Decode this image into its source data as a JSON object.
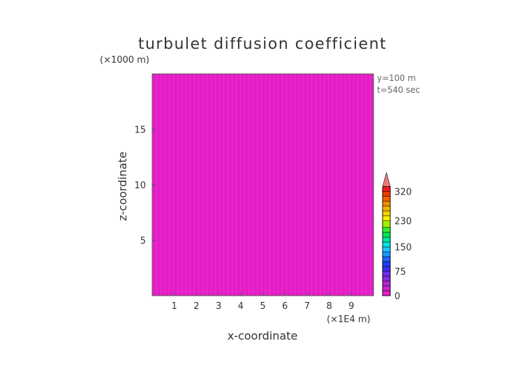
{
  "chart_data": {
    "type": "heatmap",
    "title": "turbulet diffusion coefficient",
    "xlabel": "x-coordinate",
    "ylabel": "z-coordinate",
    "x_unit": "(×1E4 m)",
    "y_unit": "(×1000 m)",
    "info_lines": [
      "y=100 m",
      "t=540 sec"
    ],
    "xlim": [
      0,
      10
    ],
    "ylim": [
      0,
      20
    ],
    "x_ticks": [
      1,
      2,
      3,
      4,
      5,
      6,
      7,
      8,
      9
    ],
    "y_ticks": [
      5,
      10,
      15
    ],
    "field_value": 0,
    "colorbar": {
      "min": 0,
      "max": 345,
      "labels": [
        0,
        75,
        150,
        230,
        320
      ],
      "levels": [
        {
          "from": 0,
          "to": 15,
          "color": "#e61ec8"
        },
        {
          "from": 15,
          "to": 30,
          "color": "#cc22cc"
        },
        {
          "from": 30,
          "to": 45,
          "color": "#b026d6"
        },
        {
          "from": 45,
          "to": 60,
          "color": "#8a2be2"
        },
        {
          "from": 60,
          "to": 75,
          "color": "#6a2fe8"
        },
        {
          "from": 75,
          "to": 90,
          "color": "#3c2df0"
        },
        {
          "from": 90,
          "to": 105,
          "color": "#1e3cff"
        },
        {
          "from": 105,
          "to": 120,
          "color": "#1e64ff"
        },
        {
          "from": 120,
          "to": 135,
          "color": "#1e96ff"
        },
        {
          "from": 135,
          "to": 150,
          "color": "#1ec8ff"
        },
        {
          "from": 150,
          "to": 165,
          "color": "#00e6e6"
        },
        {
          "from": 165,
          "to": 180,
          "color": "#00e6a0"
        },
        {
          "from": 180,
          "to": 195,
          "color": "#00e650"
        },
        {
          "from": 195,
          "to": 210,
          "color": "#32f032"
        },
        {
          "from": 210,
          "to": 230,
          "color": "#a0f000"
        },
        {
          "from": 230,
          "to": 245,
          "color": "#f0f000"
        },
        {
          "from": 245,
          "to": 260,
          "color": "#f0d200"
        },
        {
          "from": 260,
          "to": 275,
          "color": "#f0b400"
        },
        {
          "from": 275,
          "to": 290,
          "color": "#f08c00"
        },
        {
          "from": 290,
          "to": 305,
          "color": "#f06400"
        },
        {
          "from": 305,
          "to": 320,
          "color": "#f03c00"
        },
        {
          "from": 320,
          "to": 335,
          "color": "#f01e1e"
        }
      ],
      "over_color": "#f07878"
    }
  }
}
